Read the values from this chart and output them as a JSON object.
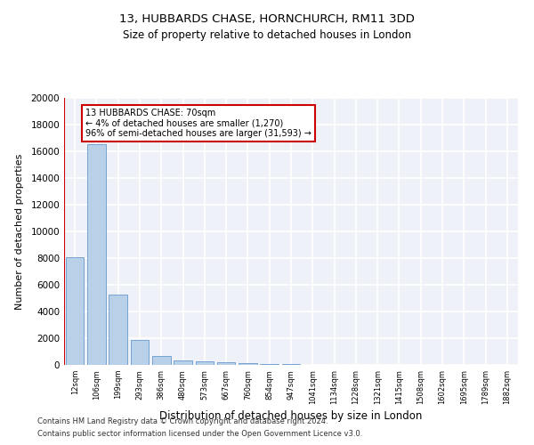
{
  "title1": "13, HUBBARDS CHASE, HORNCHURCH, RM11 3DD",
  "title2": "Size of property relative to detached houses in London",
  "xlabel": "Distribution of detached houses by size in London",
  "ylabel": "Number of detached properties",
  "bar_color": "#b8d0e8",
  "bar_edge_color": "#6699cc",
  "categories": [
    "12sqm",
    "106sqm",
    "199sqm",
    "293sqm",
    "386sqm",
    "480sqm",
    "573sqm",
    "667sqm",
    "760sqm",
    "854sqm",
    "947sqm",
    "1041sqm",
    "1134sqm",
    "1228sqm",
    "1321sqm",
    "1415sqm",
    "1508sqm",
    "1602sqm",
    "1695sqm",
    "1789sqm",
    "1882sqm"
  ],
  "values": [
    8050,
    16500,
    5300,
    1850,
    700,
    350,
    250,
    200,
    150,
    80,
    40,
    20,
    10,
    5,
    3,
    2,
    1,
    1,
    1,
    1,
    1
  ],
  "vline_color": "#cc0000",
  "annotation_title": "13 HUBBARDS CHASE: 70sqm",
  "annotation_line1": "← 4% of detached houses are smaller (1,270)",
  "annotation_line2": "96% of semi-detached houses are larger (31,593) →",
  "annotation_box_edge": "#cc0000",
  "ylim": [
    0,
    20000
  ],
  "yticks": [
    0,
    2000,
    4000,
    6000,
    8000,
    10000,
    12000,
    14000,
    16000,
    18000,
    20000
  ],
  "footer1": "Contains HM Land Registry data © Crown copyright and database right 2024.",
  "footer2": "Contains public sector information licensed under the Open Government Licence v3.0.",
  "bg_color": "#eef2f8"
}
